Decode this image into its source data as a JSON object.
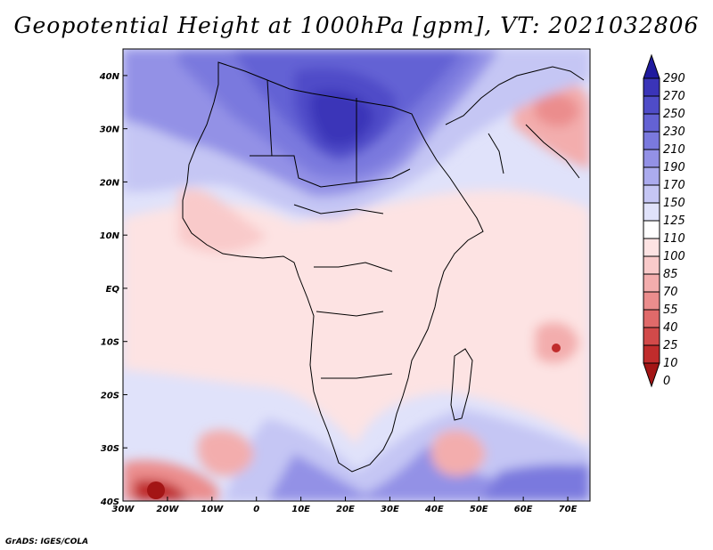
{
  "title": "Geopotential Height at 1000hPa [gpm], VT: 2021032806",
  "credit": "GrADS: IGES/COLA",
  "map": {
    "variable": "Geopotential Height",
    "level": "1000hPa",
    "units": "gpm",
    "valid_time": "2021032806",
    "lon_range": [
      -30,
      75
    ],
    "lat_range": [
      -40,
      45
    ],
    "lon_ticks": [
      {
        "value": -30,
        "label": "30W"
      },
      {
        "value": -20,
        "label": "20W"
      },
      {
        "value": -10,
        "label": "10W"
      },
      {
        "value": 0,
        "label": "0"
      },
      {
        "value": 10,
        "label": "10E"
      },
      {
        "value": 20,
        "label": "20E"
      },
      {
        "value": 30,
        "label": "30E"
      },
      {
        "value": 40,
        "label": "40E"
      },
      {
        "value": 50,
        "label": "50E"
      },
      {
        "value": 60,
        "label": "60E"
      },
      {
        "value": 70,
        "label": "70E"
      }
    ],
    "lat_ticks": [
      {
        "value": 40,
        "label": "40N"
      },
      {
        "value": 30,
        "label": "30N"
      },
      {
        "value": 20,
        "label": "20N"
      },
      {
        "value": 10,
        "label": "10N"
      },
      {
        "value": 0,
        "label": "EQ"
      },
      {
        "value": -10,
        "label": "10S"
      },
      {
        "value": -20,
        "label": "20S"
      },
      {
        "value": -30,
        "label": "30S"
      },
      {
        "value": -40,
        "label": "40S"
      }
    ],
    "colorbar_levels": [
      "290",
      "270",
      "250",
      "230",
      "210",
      "190",
      "170",
      "150",
      "125",
      "110",
      "100",
      "85",
      "70",
      "55",
      "40",
      "25",
      "10",
      "0"
    ],
    "colorbar_colors": [
      "#1f1a9e",
      "#3a34b8",
      "#4f4cc8",
      "#6462d4",
      "#7a79de",
      "#9391e6",
      "#ababee",
      "#c5c6f4",
      "#e0e2fa",
      "#ffffff",
      "#fde3e3",
      "#f9caca",
      "#f3adad",
      "#eb8d8d",
      "#e06a6a",
      "#d24a4a",
      "#c02c2c",
      "#a31515"
    ]
  }
}
